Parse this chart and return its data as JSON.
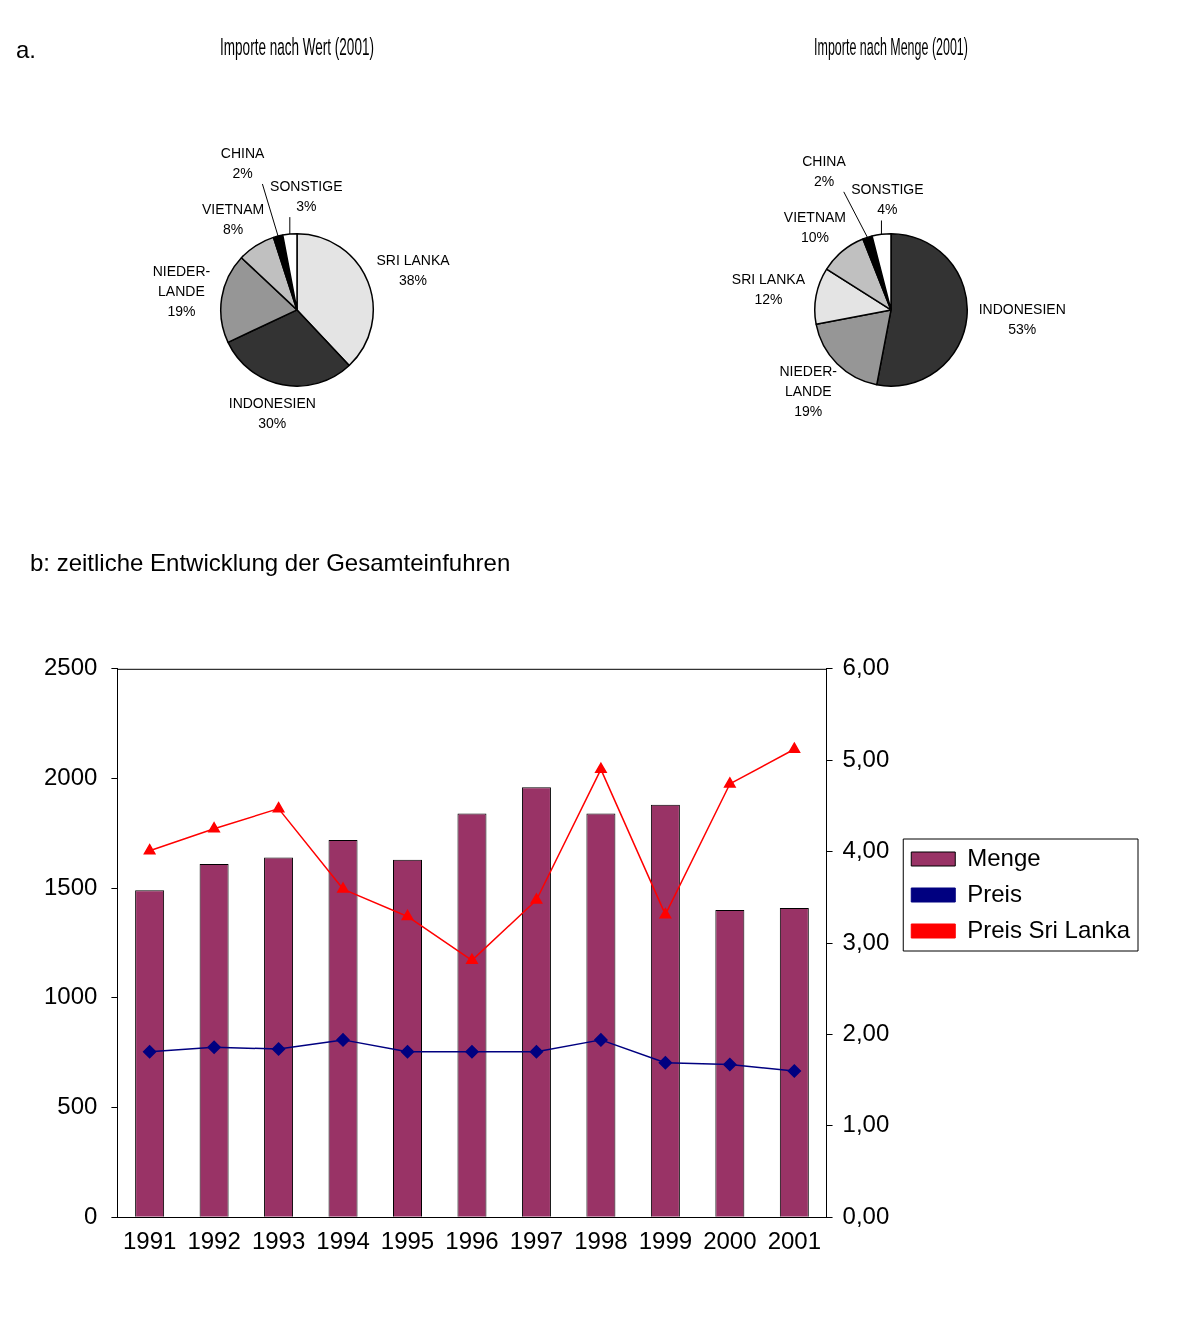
{
  "chart_data": [
    {
      "type": "pie",
      "title": "Importe nach Wert (2001)",
      "annotations": [
        "a."
      ],
      "categories": [
        "SRI LANKA",
        "INDONESIEN",
        "NIEDER-LANDE",
        "VIETNAM",
        "CHINA",
        "SONSTIGE"
      ],
      "values": [
        38,
        30,
        19,
        8,
        2,
        3
      ],
      "value_labels": [
        "38%",
        "30%",
        "19%",
        "8%",
        "2%",
        "3%"
      ],
      "colors": [
        "#e4e4e4",
        "#333333",
        "#969696",
        "#c0c0c0",
        "#000000",
        "#ffffff"
      ]
    },
    {
      "type": "pie",
      "title": "Importe nach Menge (2001)",
      "categories": [
        "INDONESIEN",
        "NIEDER-LANDE",
        "SRI LANKA",
        "VIETNAM",
        "CHINA",
        "SONSTIGE"
      ],
      "values": [
        53,
        19,
        12,
        10,
        2,
        4
      ],
      "value_labels": [
        "53%",
        "19%",
        "12%",
        "10%",
        "2%",
        "4%"
      ],
      "colors": [
        "#333333",
        "#969696",
        "#e4e4e4",
        "#c0c0c0",
        "#000000",
        "#ffffff"
      ]
    },
    {
      "type": "bar",
      "title": "b: zeitliche Entwicklung der Gesamteinfuhren",
      "categories": [
        "1991",
        "1992",
        "1993",
        "1994",
        "1995",
        "1996",
        "1997",
        "1998",
        "1999",
        "2000",
        "2001"
      ],
      "series": [
        {
          "name": "Menge",
          "type": "bar",
          "color": "#993366",
          "values": [
            1490,
            1610,
            1640,
            1720,
            1630,
            1840,
            1960,
            1840,
            1880,
            1400,
            1410
          ]
        },
        {
          "name": "Preis",
          "type": "line",
          "axis": "y2",
          "marker": "diamond",
          "color": "#000080",
          "values": [
            1.81,
            1.86,
            1.84,
            1.94,
            1.81,
            1.81,
            1.81,
            1.94,
            1.69,
            1.67,
            1.6
          ]
        },
        {
          "name": "Preis Sri Lanka",
          "type": "line",
          "axis": "y2",
          "marker": "triangle",
          "color": "#ff0000",
          "values": [
            4.01,
            4.25,
            4.47,
            3.59,
            3.29,
            2.81,
            3.47,
            4.9,
            3.31,
            4.74,
            5.12
          ]
        }
      ],
      "ylim": [
        0,
        2500
      ],
      "yticks": [
        0,
        500,
        1000,
        1500,
        2000,
        2500
      ],
      "y2lim": [
        0,
        6
      ],
      "y2ticks": [
        {
          "value": 0,
          "label": "0,00"
        },
        {
          "value": 1,
          "label": "1,00"
        },
        {
          "value": 2,
          "label": "2,00"
        },
        {
          "value": 3,
          "label": "3,00"
        },
        {
          "value": 4,
          "label": "4,00"
        },
        {
          "value": 5,
          "label": "5,00"
        },
        {
          "value": 6,
          "label": "6,00"
        }
      ],
      "legend": "right"
    }
  ]
}
